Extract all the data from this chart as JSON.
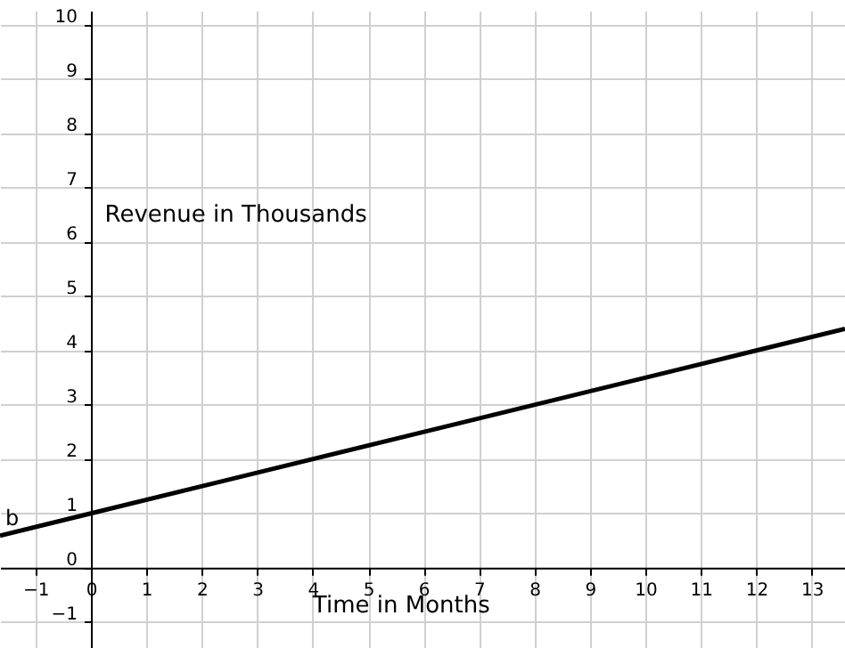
{
  "chart_data": {
    "type": "line",
    "xlabel": "Time in Months",
    "ylabel": "Revenue in Thousands",
    "x": [
      -1.64,
      0,
      12,
      13.6
    ],
    "series": [
      {
        "color": "#000000",
        "values": [
          0.59,
          1,
          4,
          4.4
        ]
      }
    ],
    "annotations": [
      "b"
    ],
    "xlim": [
      -1.64,
      13.6
    ],
    "ylim": [
      -1.48,
      10.26
    ],
    "xticks": [
      -1,
      0,
      1,
      2,
      3,
      4,
      5,
      6,
      7,
      8,
      9,
      10,
      11,
      12,
      13
    ],
    "yticks": [
      -1,
      0,
      1,
      2,
      3,
      4,
      5,
      6,
      7,
      8,
      9,
      10
    ],
    "grid": true,
    "marker": "none",
    "line_style": "solid"
  }
}
